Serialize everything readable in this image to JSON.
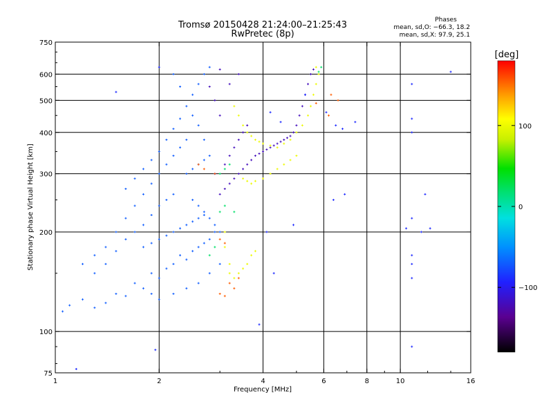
{
  "chart_data": {
    "type": "scatter",
    "title": "Tromsø 20150428 21:24:00–21:25:43",
    "subtitle": "RwPretec (8p)",
    "xlabel": "Frequency [MHz]",
    "ylabel": "Stationary phase Virtual Height [km]",
    "x_scale": "log",
    "y_scale": "log",
    "xlim": [
      1,
      16
    ],
    "ylim": [
      75,
      750
    ],
    "x_ticks": [
      1,
      2,
      4,
      6,
      8,
      10,
      16
    ],
    "x_tick_labels": [
      "1",
      "2",
      "4",
      "6",
      "8",
      "10",
      "16"
    ],
    "y_ticks": [
      75,
      100,
      200,
      300,
      400,
      500,
      600,
      750
    ],
    "y_tick_labels": [
      "75",
      "100",
      "200",
      "300",
      "400",
      "500",
      "600",
      "750"
    ],
    "x_gridlines": [
      2,
      4,
      6,
      8,
      10
    ],
    "y_gridlines": [
      100,
      200,
      300,
      400,
      500,
      600
    ],
    "stats": {
      "heading": "Phases",
      "line_o": "mean, sd,O: −66.3, 18.2",
      "line_x": "mean, sd,X:  97.9, 25.1"
    },
    "colorbar": {
      "label": "[deg]",
      "min": -180,
      "max": 180,
      "ticks": [
        -100,
        0,
        100
      ],
      "tick_labels": [
        "−100",
        "0",
        "100"
      ],
      "colormap": "rainbow"
    },
    "series": [
      {
        "trace": "dense lower cloud",
        "phase_deg": -70,
        "points": [
          [
            1.05,
            115
          ],
          [
            1.1,
            120
          ],
          [
            1.2,
            125
          ],
          [
            1.3,
            118
          ],
          [
            1.4,
            122
          ],
          [
            1.5,
            130
          ],
          [
            1.6,
            128
          ],
          [
            1.7,
            140
          ],
          [
            1.8,
            135
          ],
          [
            1.9,
            150
          ],
          [
            2.0,
            145
          ],
          [
            2.1,
            155
          ],
          [
            2.2,
            160
          ],
          [
            2.3,
            170
          ],
          [
            2.4,
            165
          ],
          [
            2.5,
            175
          ],
          [
            2.6,
            180
          ],
          [
            2.7,
            185
          ],
          [
            2.8,
            190
          ],
          [
            2.9,
            200
          ],
          [
            1.3,
            150
          ],
          [
            1.4,
            160
          ],
          [
            1.5,
            175
          ],
          [
            1.6,
            190
          ],
          [
            1.7,
            200
          ],
          [
            1.8,
            210
          ],
          [
            1.9,
            225
          ],
          [
            2.0,
            240
          ],
          [
            2.1,
            250
          ],
          [
            2.2,
            260
          ],
          [
            1.5,
            200
          ],
          [
            1.6,
            220
          ],
          [
            1.7,
            240
          ],
          [
            1.8,
            260
          ],
          [
            1.9,
            280
          ],
          [
            2.0,
            300
          ],
          [
            2.1,
            320
          ],
          [
            2.2,
            340
          ],
          [
            2.3,
            360
          ],
          [
            2.4,
            380
          ],
          [
            1.6,
            270
          ],
          [
            1.7,
            290
          ],
          [
            1.8,
            310
          ],
          [
            1.9,
            330
          ],
          [
            2.0,
            350
          ],
          [
            2.1,
            380
          ],
          [
            2.2,
            410
          ],
          [
            2.3,
            440
          ],
          [
            2.4,
            480
          ],
          [
            2.5,
            520
          ],
          [
            2.6,
            560
          ],
          [
            2.7,
            600
          ],
          [
            2.8,
            630
          ],
          [
            2.2,
            600
          ],
          [
            2.3,
            550
          ],
          [
            2.5,
            450
          ],
          [
            2.6,
            420
          ],
          [
            2.7,
            380
          ],
          [
            2.8,
            340
          ],
          [
            2.9,
            300
          ],
          [
            1.2,
            160
          ],
          [
            1.3,
            170
          ],
          [
            1.4,
            180
          ],
          [
            1.9,
            130
          ],
          [
            2.0,
            125
          ],
          [
            2.2,
            130
          ],
          [
            2.4,
            135
          ],
          [
            2.6,
            140
          ],
          [
            2.8,
            150
          ],
          [
            3.0,
            160
          ],
          [
            2.5,
            250
          ],
          [
            2.6,
            240
          ],
          [
            2.7,
            230
          ],
          [
            2.8,
            220
          ],
          [
            2.9,
            210
          ],
          [
            3.0,
            200
          ],
          [
            2.4,
            300
          ],
          [
            2.5,
            310
          ],
          [
            2.6,
            320
          ],
          [
            2.7,
            330
          ],
          [
            1.8,
            180
          ],
          [
            1.9,
            185
          ],
          [
            2.0,
            190
          ],
          [
            2.1,
            195
          ],
          [
            2.2,
            200
          ],
          [
            2.3,
            205
          ],
          [
            2.4,
            210
          ],
          [
            2.5,
            215
          ],
          [
            2.6,
            220
          ],
          [
            2.7,
            225
          ]
        ]
      },
      {
        "trace": "O-mode trace",
        "phase_deg": -120,
        "points": [
          [
            3.0,
            260
          ],
          [
            3.1,
            270
          ],
          [
            3.2,
            280
          ],
          [
            3.3,
            290
          ],
          [
            3.4,
            300
          ],
          [
            3.5,
            310
          ],
          [
            3.6,
            320
          ],
          [
            3.7,
            330
          ],
          [
            3.8,
            340
          ],
          [
            3.9,
            345
          ],
          [
            4.0,
            350
          ],
          [
            4.1,
            355
          ],
          [
            4.2,
            360
          ],
          [
            4.3,
            365
          ],
          [
            4.4,
            370
          ],
          [
            4.5,
            375
          ],
          [
            4.6,
            380
          ],
          [
            4.7,
            385
          ],
          [
            4.8,
            390
          ],
          [
            4.9,
            400
          ],
          [
            5.0,
            420
          ],
          [
            5.1,
            450
          ],
          [
            5.2,
            480
          ],
          [
            5.3,
            520
          ],
          [
            5.4,
            560
          ],
          [
            5.5,
            600
          ],
          [
            5.6,
            620
          ],
          [
            3.1,
            320
          ],
          [
            3.2,
            340
          ],
          [
            3.3,
            360
          ],
          [
            3.4,
            380
          ],
          [
            3.5,
            400
          ],
          [
            3.6,
            420
          ],
          [
            3.0,
            450
          ],
          [
            2.9,
            500
          ],
          [
            2.8,
            550
          ],
          [
            3.2,
            560
          ],
          [
            3.4,
            600
          ],
          [
            3.0,
            620
          ],
          [
            2.9,
            300
          ]
        ]
      },
      {
        "trace": "X-mode trace",
        "phase_deg": 100,
        "points": [
          [
            3.3,
            480
          ],
          [
            3.4,
            450
          ],
          [
            3.5,
            420
          ],
          [
            3.6,
            400
          ],
          [
            3.7,
            390
          ],
          [
            3.8,
            380
          ],
          [
            3.9,
            375
          ],
          [
            4.0,
            370
          ],
          [
            4.2,
            365
          ],
          [
            4.4,
            360
          ],
          [
            4.6,
            370
          ],
          [
            4.8,
            380
          ],
          [
            5.0,
            400
          ],
          [
            5.2,
            420
          ],
          [
            5.4,
            450
          ],
          [
            5.5,
            480
          ],
          [
            5.6,
            520
          ],
          [
            5.7,
            560
          ],
          [
            5.8,
            600
          ],
          [
            5.7,
            630
          ],
          [
            3.5,
            290
          ],
          [
            3.6,
            285
          ],
          [
            3.7,
            280
          ],
          [
            3.8,
            285
          ],
          [
            4.0,
            290
          ],
          [
            4.2,
            300
          ],
          [
            4.4,
            310
          ],
          [
            4.6,
            320
          ],
          [
            4.8,
            330
          ],
          [
            5.0,
            340
          ],
          [
            3.1,
            200
          ],
          [
            3.1,
            180
          ],
          [
            3.2,
            160
          ],
          [
            3.2,
            150
          ],
          [
            3.3,
            145
          ],
          [
            3.4,
            150
          ],
          [
            3.5,
            155
          ],
          [
            3.6,
            160
          ],
          [
            3.7,
            170
          ],
          [
            3.8,
            175
          ]
        ]
      },
      {
        "trace": "red/orange points",
        "phase_deg": 155,
        "points": [
          [
            2.6,
            320
          ],
          [
            2.7,
            310
          ],
          [
            2.9,
            300
          ],
          [
            3.0,
            130
          ],
          [
            3.1,
            128
          ],
          [
            3.2,
            140
          ],
          [
            3.3,
            135
          ],
          [
            3.4,
            145
          ],
          [
            5.7,
            490
          ],
          [
            6.3,
            520
          ],
          [
            6.6,
            500
          ],
          [
            6.2,
            450
          ],
          [
            3.0,
            190
          ],
          [
            3.1,
            185
          ]
        ]
      },
      {
        "trace": "green points",
        "phase_deg": 20,
        "points": [
          [
            3.0,
            300
          ],
          [
            3.1,
            310
          ],
          [
            3.2,
            320
          ],
          [
            2.8,
            170
          ],
          [
            2.9,
            180
          ],
          [
            3.0,
            230
          ],
          [
            3.1,
            240
          ],
          [
            5.9,
            630
          ],
          [
            5.8,
            610
          ],
          [
            3.3,
            230
          ]
        ]
      },
      {
        "trace": "sparse outliers",
        "phase_deg": -90,
        "points": [
          [
            1.5,
            530
          ],
          [
            2.0,
            630
          ],
          [
            1.95,
            88
          ],
          [
            1.15,
            77
          ],
          [
            3.9,
            105
          ],
          [
            4.5,
            430
          ],
          [
            4.9,
            210
          ],
          [
            6.5,
            420
          ],
          [
            7.4,
            430
          ],
          [
            10.8,
            560
          ],
          [
            10.8,
            440
          ],
          [
            10.8,
            400
          ],
          [
            10.8,
            220
          ],
          [
            10.8,
            170
          ],
          [
            10.8,
            160
          ],
          [
            10.8,
            145
          ],
          [
            11.5,
            200
          ],
          [
            12.2,
            205
          ],
          [
            14.0,
            610
          ],
          [
            10.4,
            205
          ],
          [
            6.1,
            460
          ],
          [
            6.8,
            410
          ],
          [
            4.1,
            200
          ],
          [
            4.3,
            150
          ],
          [
            4.2,
            460
          ],
          [
            6.4,
            250
          ],
          [
            6.9,
            260
          ],
          [
            10.8,
            90
          ],
          [
            11.8,
            260
          ],
          [
            5.3,
            520
          ]
        ]
      }
    ]
  }
}
